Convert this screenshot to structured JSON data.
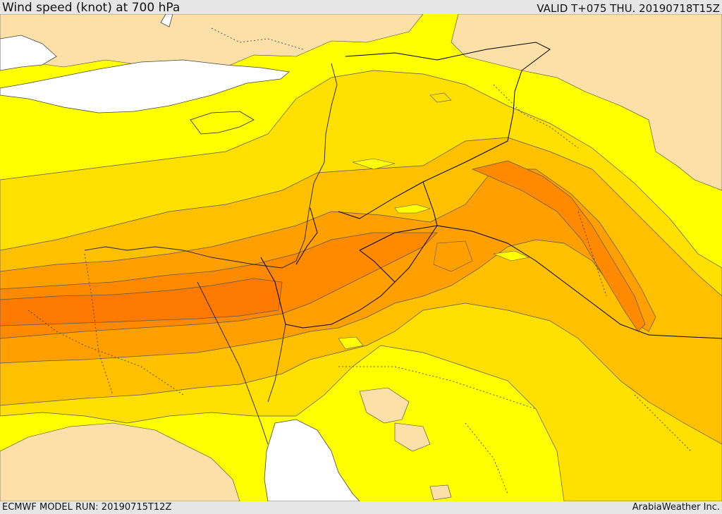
{
  "header": {
    "title": "Wind speed (knot) at 700 hPa",
    "valid": "VALID T+075 THU. 20190718T15Z"
  },
  "footer": {
    "model_run": "ECMWF MODEL RUN: 20190715T12Z",
    "credit": "ArabiaWeather Inc."
  },
  "map": {
    "variable": "wind speed",
    "level": "700 hPa",
    "unit": "knot",
    "shading_colors": {
      "lowest": "#fde0a8",
      "low": "#ffff00",
      "medium_low": "#ffe000",
      "medium": "#ffc000",
      "medium_high": "#ffa000",
      "high": "#ff8a00",
      "highest": "#ff7a00"
    },
    "water_color": "#ffffff",
    "contour_color": "#333333",
    "border_color": "#000000"
  }
}
